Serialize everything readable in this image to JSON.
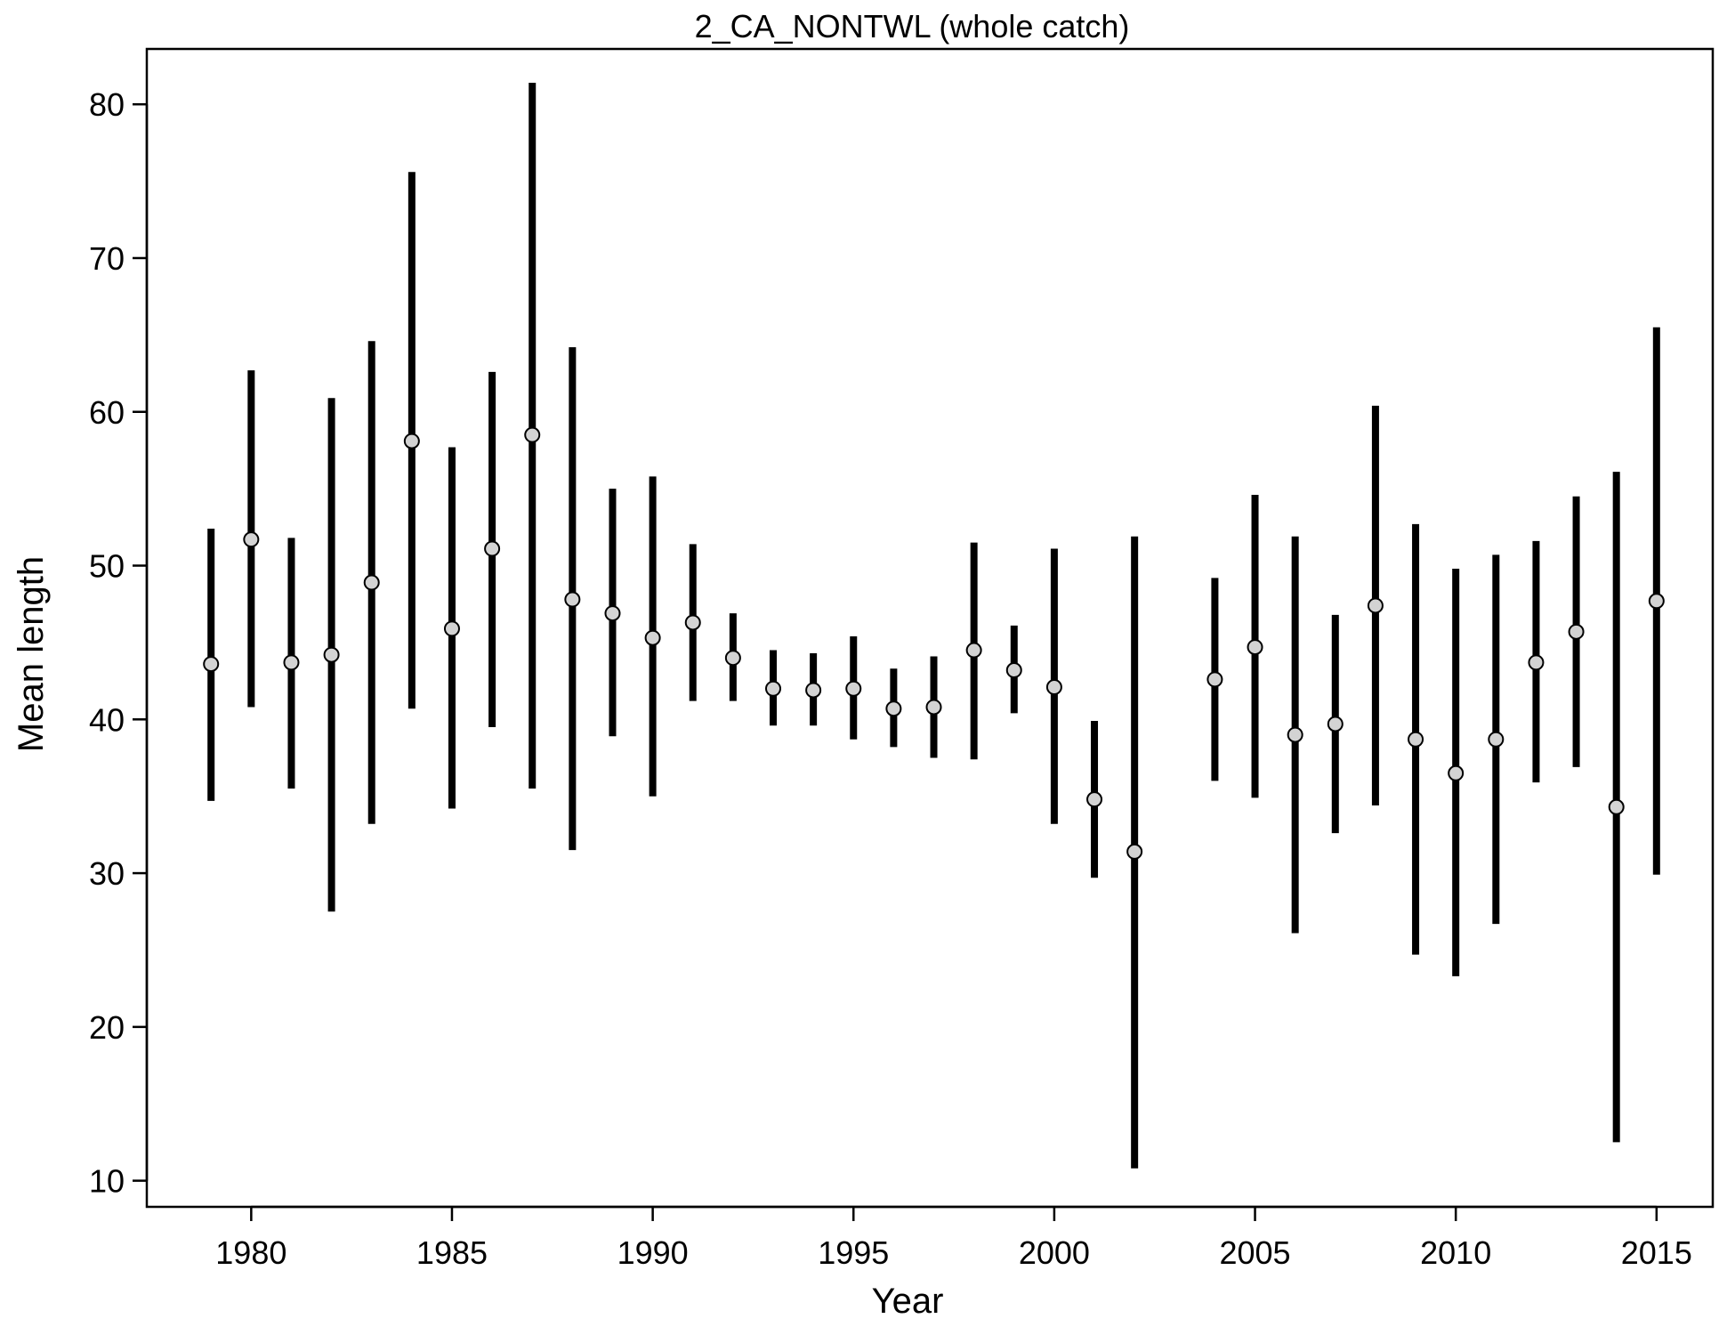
{
  "chart_data": {
    "type": "scatter",
    "title": "2_CA_NONTWL (whole catch)",
    "xlabel": "Year",
    "ylabel": "Mean length",
    "xlim": [
      1977.4,
      2016.4
    ],
    "ylim": [
      8.3,
      83.6
    ],
    "x_ticks": [
      1980,
      1985,
      1990,
      1995,
      2000,
      2005,
      2010,
      2015
    ],
    "y_ticks": [
      10,
      20,
      30,
      40,
      50,
      60,
      70,
      80
    ],
    "grid": false,
    "marker_fill": "#d3d3d3",
    "line_color": "#000000",
    "series": [
      {
        "points": [
          {
            "x": 1979,
            "y": 43.6,
            "lo": 34.7,
            "hi": 52.4
          },
          {
            "x": 1980,
            "y": 51.7,
            "lo": 40.8,
            "hi": 62.7
          },
          {
            "x": 1981,
            "y": 43.7,
            "lo": 35.5,
            "hi": 51.8
          },
          {
            "x": 1982,
            "y": 44.2,
            "lo": 27.5,
            "hi": 60.9
          },
          {
            "x": 1983,
            "y": 48.9,
            "lo": 33.2,
            "hi": 64.6
          },
          {
            "x": 1984,
            "y": 58.1,
            "lo": 40.7,
            "hi": 75.6
          },
          {
            "x": 1985,
            "y": 45.9,
            "lo": 34.2,
            "hi": 57.7
          },
          {
            "x": 1986,
            "y": 51.1,
            "lo": 39.5,
            "hi": 62.6
          },
          {
            "x": 1987,
            "y": 58.5,
            "lo": 35.5,
            "hi": 81.4
          },
          {
            "x": 1988,
            "y": 47.8,
            "lo": 31.5,
            "hi": 64.2
          },
          {
            "x": 1989,
            "y": 46.9,
            "lo": 38.9,
            "hi": 55.0
          },
          {
            "x": 1990,
            "y": 45.3,
            "lo": 35.0,
            "hi": 55.8
          },
          {
            "x": 1991,
            "y": 46.3,
            "lo": 41.2,
            "hi": 51.4
          },
          {
            "x": 1992,
            "y": 44.0,
            "lo": 41.2,
            "hi": 46.9
          },
          {
            "x": 1993,
            "y": 42.0,
            "lo": 39.6,
            "hi": 44.5
          },
          {
            "x": 1994,
            "y": 41.9,
            "lo": 39.6,
            "hi": 44.3
          },
          {
            "x": 1995,
            "y": 42.0,
            "lo": 38.7,
            "hi": 45.4
          },
          {
            "x": 1996,
            "y": 40.7,
            "lo": 38.2,
            "hi": 43.3
          },
          {
            "x": 1997,
            "y": 40.8,
            "lo": 37.5,
            "hi": 44.1
          },
          {
            "x": 1998,
            "y": 44.5,
            "lo": 37.4,
            "hi": 51.5
          },
          {
            "x": 1999,
            "y": 43.2,
            "lo": 40.4,
            "hi": 46.1
          },
          {
            "x": 2000,
            "y": 42.1,
            "lo": 33.2,
            "hi": 51.1
          },
          {
            "x": 2001,
            "y": 34.8,
            "lo": 29.7,
            "hi": 39.9
          },
          {
            "x": 2002,
            "y": 31.4,
            "lo": 10.8,
            "hi": 51.9
          },
          {
            "x": 2004,
            "y": 42.6,
            "lo": 36.0,
            "hi": 49.2
          },
          {
            "x": 2005,
            "y": 44.7,
            "lo": 34.9,
            "hi": 54.6
          },
          {
            "x": 2006,
            "y": 39.0,
            "lo": 26.1,
            "hi": 51.9
          },
          {
            "x": 2007,
            "y": 39.7,
            "lo": 32.6,
            "hi": 46.8
          },
          {
            "x": 2008,
            "y": 47.4,
            "lo": 34.4,
            "hi": 60.4
          },
          {
            "x": 2009,
            "y": 38.7,
            "lo": 24.7,
            "hi": 52.7
          },
          {
            "x": 2010,
            "y": 36.5,
            "lo": 23.3,
            "hi": 49.8
          },
          {
            "x": 2011,
            "y": 38.7,
            "lo": 26.7,
            "hi": 50.7
          },
          {
            "x": 2012,
            "y": 43.7,
            "lo": 35.9,
            "hi": 51.6
          },
          {
            "x": 2013,
            "y": 45.7,
            "lo": 36.9,
            "hi": 54.5
          },
          {
            "x": 2014,
            "y": 34.3,
            "lo": 12.5,
            "hi": 56.1
          },
          {
            "x": 2015,
            "y": 47.7,
            "lo": 29.9,
            "hi": 65.5
          }
        ]
      }
    ]
  }
}
